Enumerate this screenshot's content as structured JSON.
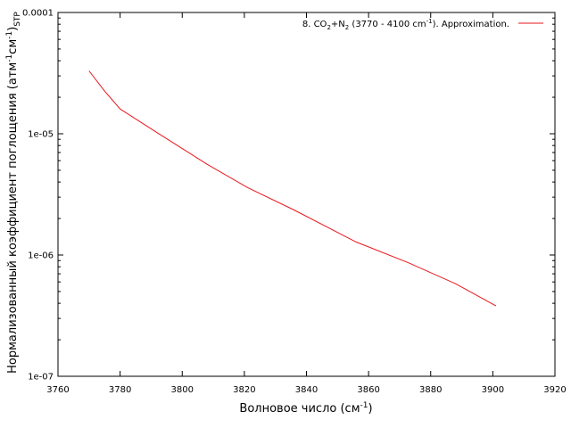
{
  "chart_data": {
    "type": "line",
    "xlabel": "Волновое число (см",
    "xlabel_sup": "-1",
    "xlabel_end": ")",
    "ylabel_main": "Нормализованный коэффициент поглощения (атм",
    "ylabel_sup1": "-1",
    "ylabel_mid": "см",
    "ylabel_sup2": "-1",
    "ylabel_close": ")",
    "ylabel_sub": "STP",
    "xlim": [
      3760,
      3920
    ],
    "ylim": [
      1e-07,
      0.0001
    ],
    "yscale": "log",
    "x_ticks": [
      3760,
      3780,
      3800,
      3820,
      3840,
      3860,
      3880,
      3900,
      3920
    ],
    "x_tick_labels": [
      "3760",
      "3780",
      "3800",
      "3820",
      "3840",
      "3860",
      "3880",
      "3900",
      "3920"
    ],
    "y_ticks": [
      1e-07,
      1e-06,
      1e-05,
      0.0001
    ],
    "y_tick_labels": [
      "1e-07",
      "1e-06",
      "1e-05",
      "0.0001"
    ],
    "grid": false,
    "legend_position": "top-right",
    "series": [
      {
        "legend_parts": [
          "8. CO",
          "2",
          "+N",
          "2",
          " (3770 - 4100 cm",
          "-1",
          "). Approximation."
        ],
        "color": "#e8161c",
        "x": [
          3770,
          3775,
          3780,
          3793,
          3808,
          3821,
          3836,
          3856,
          3873,
          3888,
          3901
        ],
        "y": [
          3.3e-05,
          2.25e-05,
          1.6e-05,
          9.8e-06,
          5.6e-06,
          3.6e-06,
          2.35e-06,
          1.28e-06,
          8.6e-07,
          5.8e-07,
          3.8e-07
        ]
      }
    ]
  }
}
